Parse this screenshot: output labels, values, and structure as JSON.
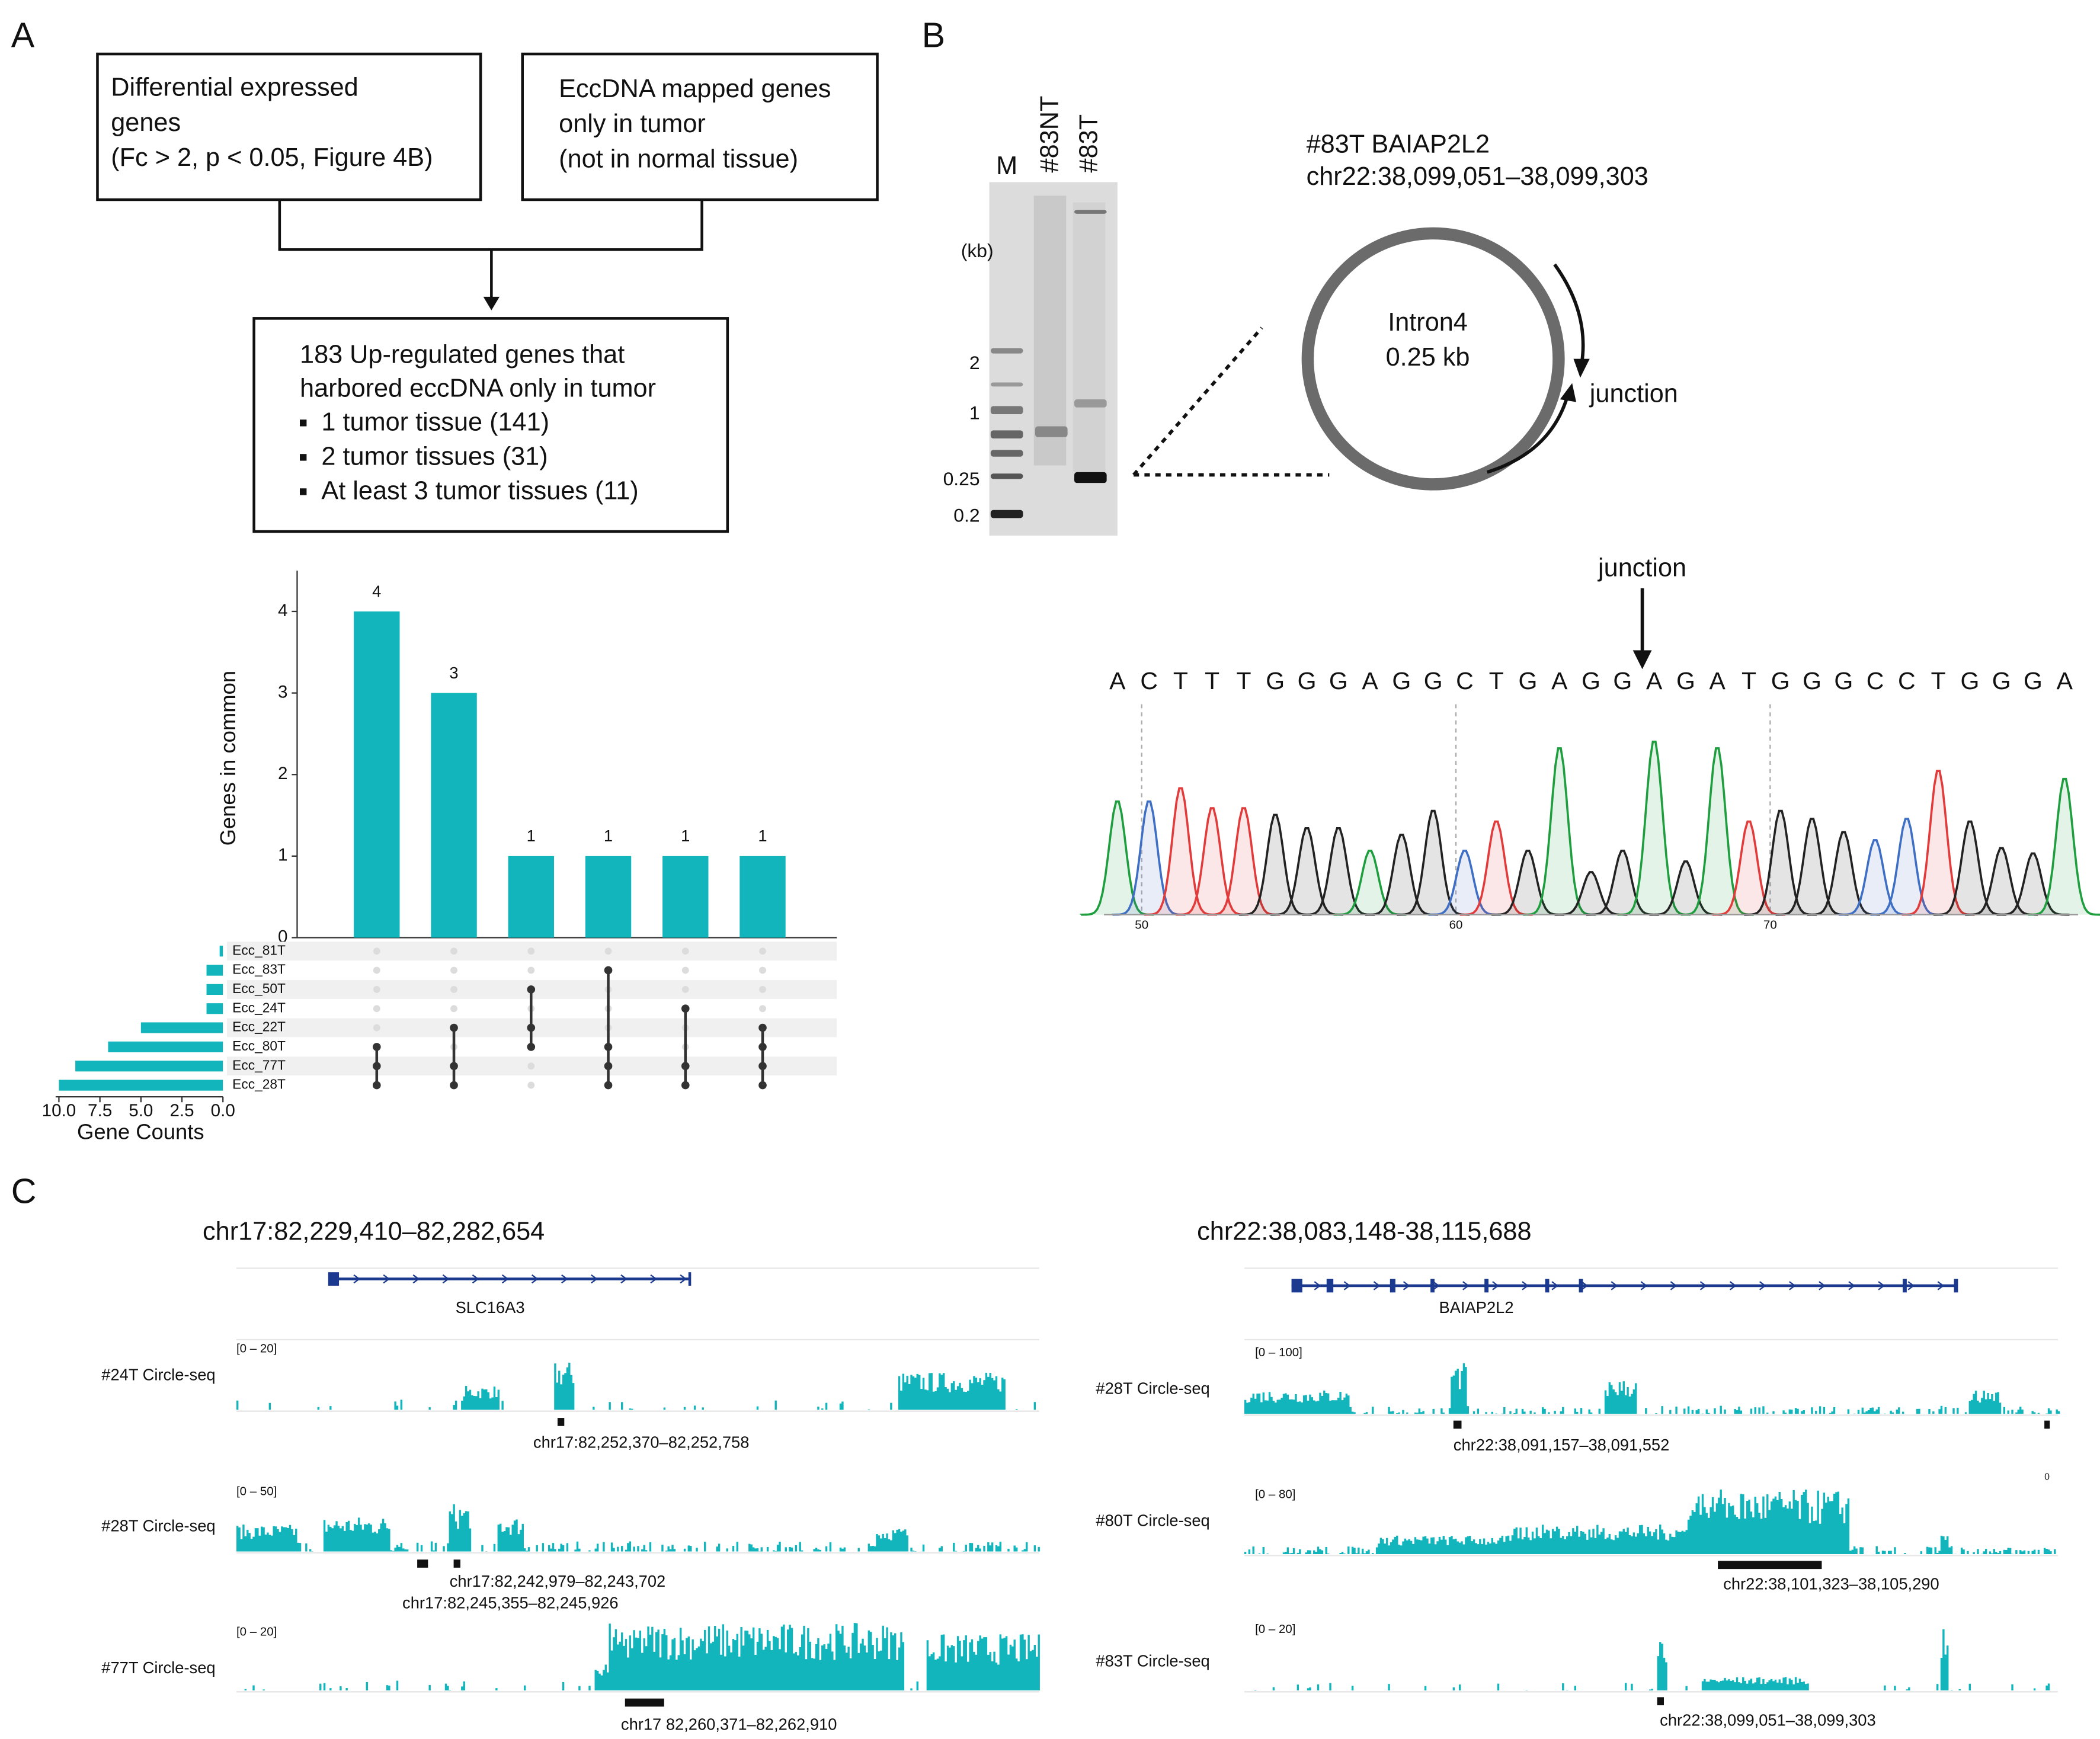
{
  "panel_labels": [
    "A",
    "B",
    "C"
  ],
  "flowchart": {
    "box1": [
      "Differential expressed",
      "genes",
      "(Fc > 2, p < 0.05, Figure 4B)"
    ],
    "box2": [
      "EccDNA mapped genes",
      "only in tumor",
      "(not in normal tissue)"
    ],
    "box3": {
      "title": [
        "183 Up-regulated genes that",
        "harbored eccDNA only in tumor"
      ],
      "items": [
        "1 tumor tissue (141)",
        "2 tumor tissues (31)",
        "At least 3 tumor tissues (11)"
      ]
    }
  },
  "upset": {
    "type": "bar",
    "ylabel": "Genes in common",
    "color": "#12b5bb",
    "values": [
      4,
      3,
      1,
      1,
      1,
      1
    ],
    "ylim": [
      0,
      4.5
    ],
    "yticks": [
      0,
      1,
      2,
      3,
      4
    ],
    "sets": [
      "Ecc_81T",
      "Ecc_83T",
      "Ecc_50T",
      "Ecc_24T",
      "Ecc_22T",
      "Ecc_80T",
      "Ecc_77T",
      "Ecc_28T"
    ],
    "set_sizes": [
      0.2,
      1,
      1,
      1,
      5,
      7,
      9,
      10
    ],
    "xlabel": "Gene Counts",
    "xlim": [
      10.2,
      0
    ],
    "xticks": [
      {
        "value": 10,
        "label": "10.0"
      },
      7.5,
      {
        "value": 5,
        "label": "5.0"
      },
      2.5,
      {
        "value": 0,
        "label": "0.0"
      }
    ],
    "intersections": [
      [
        "Ecc_80T",
        "Ecc_77T",
        "Ecc_28T"
      ],
      [
        "Ecc_22T",
        "Ecc_77T",
        "Ecc_28T"
      ],
      [
        "Ecc_50T",
        "Ecc_22T",
        "Ecc_80T"
      ],
      [
        "Ecc_83T",
        "Ecc_80T",
        "Ecc_77T",
        "Ecc_28T"
      ],
      [
        "Ecc_24T",
        "Ecc_77T",
        "Ecc_28T"
      ],
      [
        "Ecc_22T",
        "Ecc_80T",
        "Ecc_77T",
        "Ecc_28T"
      ]
    ]
  },
  "gel": {
    "lanes": [
      "M",
      "#83NT",
      "#83T"
    ],
    "unit": "(kb)",
    "size_labels": [
      "2",
      "1",
      "0.25",
      "0.2"
    ]
  },
  "circle": {
    "title": [
      "#83T BAIAP2L2",
      "chr22:38,099,051–38,099,303"
    ],
    "inner": [
      "Intron4",
      "0.25 kb"
    ],
    "junction": "junction"
  },
  "sequence": {
    "junction": "junction",
    "letters": [
      "A",
      "C",
      "T",
      "T",
      "T",
      "G",
      "G",
      "G",
      "A",
      "G",
      "G",
      "C",
      "T",
      "G",
      "A",
      "G",
      "G",
      "A",
      "G",
      "A",
      "T",
      "G",
      "G",
      "G",
      "C",
      "C",
      "T",
      "G",
      "G",
      "G",
      "A"
    ],
    "base_colors": {
      "A": "#1f9e3f",
      "C": "#3f6fc4",
      "T": "#e23b3b",
      "G": "#222222"
    },
    "xlim": [
      48.8,
      79.8
    ],
    "xticks": [
      50,
      60,
      70
    ]
  },
  "tracks_left": {
    "title": "chr17:82,229,410–82,282,654",
    "gene": "SLC16A3",
    "tracks": [
      {
        "name": "#24T Circle-seq",
        "range": "[0 – 20]",
        "regions": [
          "chr17:82,252,370–82,252,758"
        ]
      },
      {
        "name": "#28T Circle-seq",
        "range": "[0 – 50]",
        "regions": [
          "chr17:82,242,979–82,243,702",
          "chr17:82,245,355–82,245,926"
        ]
      },
      {
        "name": "#77T Circle-seq",
        "range": "[0 – 20]",
        "regions": [
          "chr17 82,260,371–82,262,910"
        ]
      }
    ]
  },
  "tracks_right": {
    "title": "chr22:38,083,148-38,115,688",
    "gene": "BAIAP2L2",
    "tracks": [
      {
        "name": "#28T Circle-seq",
        "range": "[0 – 100]",
        "regions": [
          "chr22:38,091,157–38,091,552",
          "0"
        ]
      },
      {
        "name": "#80T Circle-seq",
        "range": "[0 – 80]",
        "regions": [
          "chr22:38,101,323–38,105,290"
        ]
      },
      {
        "name": "#83T Circle-seq",
        "range": "[0 – 20]",
        "regions": [
          "chr22:38,099,051–38,099,303"
        ]
      }
    ]
  }
}
